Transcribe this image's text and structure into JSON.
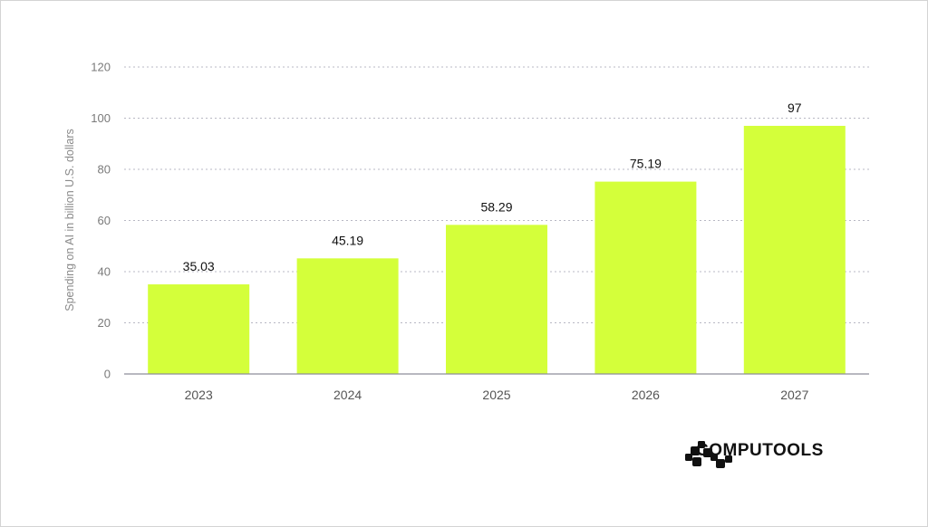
{
  "chart_data": {
    "type": "bar",
    "categories": [
      "2023",
      "2024",
      "2025",
      "2026",
      "2027"
    ],
    "values": [
      35.03,
      45.19,
      58.29,
      75.19,
      97
    ],
    "data_labels": [
      "35.03",
      "45.19",
      "58.29",
      "75.19",
      "97"
    ],
    "title": "",
    "xlabel": "",
    "ylabel": "Spending on AI in billion U.S. dollars",
    "ylim": [
      0,
      120
    ],
    "yticks": [
      0,
      20,
      40,
      60,
      80,
      100,
      120
    ],
    "grid": true,
    "bar_color": "#d4ff3a",
    "gridline_color": "#b8b8c4",
    "text_color": "#111111",
    "tick_color": "#7a7a7a"
  },
  "brand": {
    "name": "COMPUTOOLS",
    "logo_icon": "computools-logo-icon"
  }
}
